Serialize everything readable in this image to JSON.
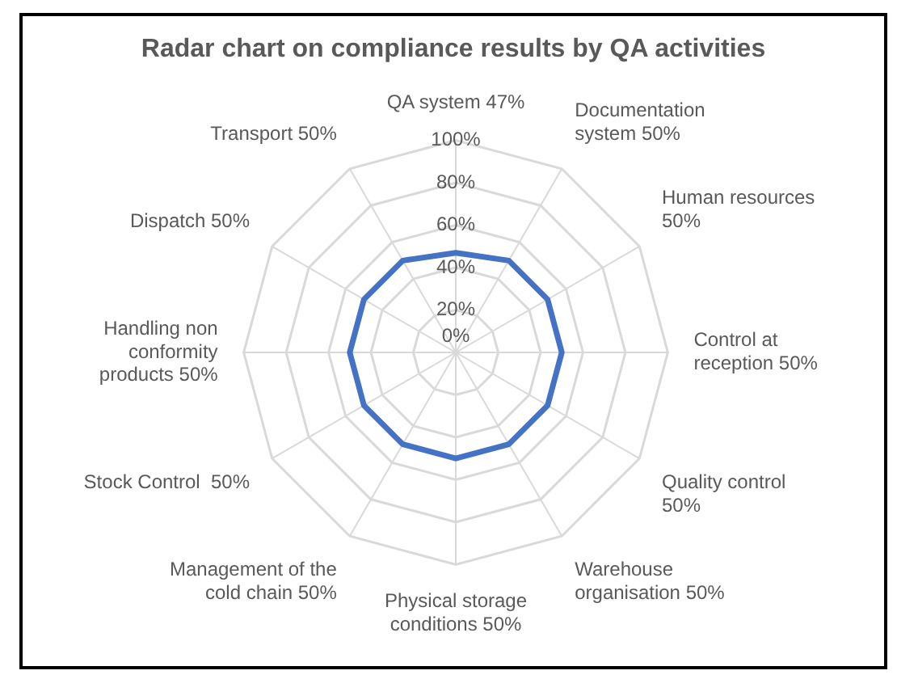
{
  "chart_data": {
    "type": "radar",
    "title": "Radar chart on compliance results by QA activities",
    "categories": [
      "QA system 47%",
      "Documentation system 50%",
      "Human resources 50%",
      "Control at reception 50%",
      "Quality control 50%",
      "Warehouse organisation 50%",
      "Physical storage conditions 50%",
      "Management of the cold chain 50%",
      "Stock Control  50%",
      "Handling non conformity products 50%",
      "Dispatch 50%",
      "Transport 50%"
    ],
    "series": [
      {
        "color": "#4472c4",
        "values": [
          47,
          50,
          50,
          50,
          50,
          50,
          50,
          50,
          50,
          50,
          50,
          50
        ]
      }
    ],
    "ylim": [
      0,
      100
    ],
    "yticks": [
      {
        "value": 0,
        "label": "0%"
      },
      {
        "value": 20,
        "label": "20%"
      },
      {
        "value": 40,
        "label": "40%"
      },
      {
        "value": 60,
        "label": "60%"
      },
      {
        "value": 80,
        "label": "80%"
      },
      {
        "value": 100,
        "label": "100%"
      }
    ],
    "grid": true,
    "legend": false,
    "marker": "none"
  }
}
